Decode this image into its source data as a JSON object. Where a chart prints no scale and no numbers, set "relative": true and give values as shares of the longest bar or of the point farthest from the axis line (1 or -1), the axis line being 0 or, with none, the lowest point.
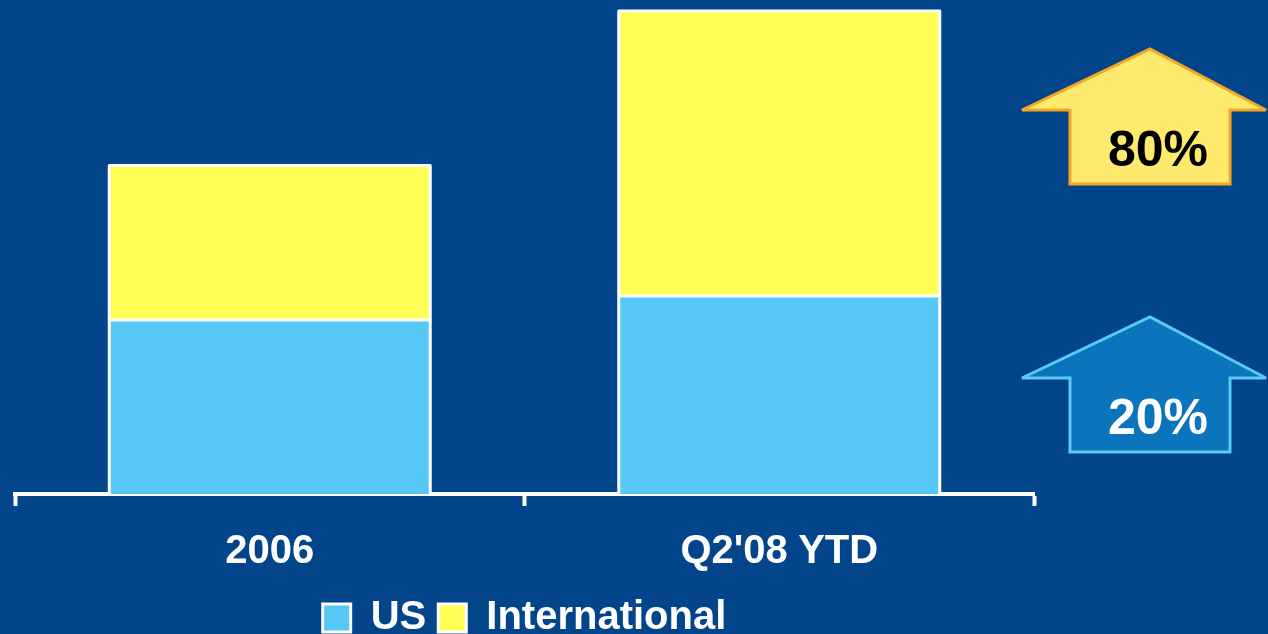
{
  "chart_data": {
    "type": "bar",
    "relative": true,
    "stacked": true,
    "categories": [
      "2006",
      "Q2'08 YTD"
    ],
    "series": [
      {
        "name": "US",
        "color": "#55c8f5",
        "values": [
          0.36,
          0.41
        ]
      },
      {
        "name": "International",
        "color": "#ffff55",
        "values": [
          0.32,
          0.59
        ]
      }
    ],
    "legend": "bottom",
    "annotations": [
      "80%",
      "20%"
    ]
  }
}
